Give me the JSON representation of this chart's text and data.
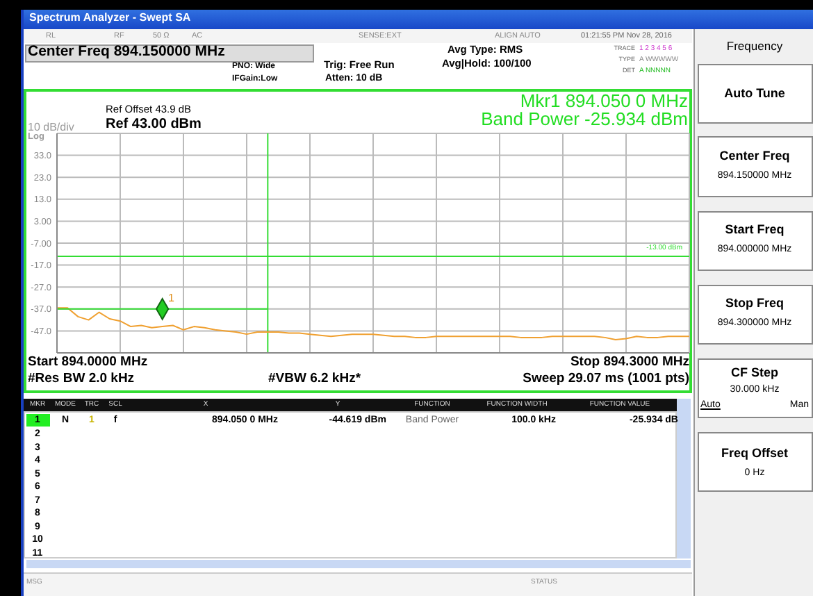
{
  "chart_data": {
    "type": "line",
    "categories": [
      null,
      null,
      null,
      null,
      null,
      null,
      null,
      null,
      null,
      null,
      null,
      null,
      null,
      null,
      null,
      null,
      null,
      null,
      null,
      null,
      null,
      null,
      null,
      null,
      null,
      null,
      null,
      null,
      null,
      null,
      null,
      null,
      null,
      null,
      null,
      null,
      null,
      null,
      null,
      null,
      null,
      null,
      null,
      null,
      null,
      null,
      null,
      null,
      null,
      null,
      null,
      null,
      null,
      null,
      null,
      null,
      null,
      null,
      null,
      null,
      null
    ],
    "series": [
      {
        "type": "line",
        "color": "#f0a030",
        "values": [
          -36.5,
          -36.5,
          -40.5,
          -42,
          -38.5,
          -41.5,
          -42.5,
          -45,
          -44.5,
          -45.5,
          -45,
          -44.5,
          -46.5,
          -45,
          -45.5,
          -46.5,
          -47,
          -47.5,
          -48.5,
          -47.5,
          -47.5,
          -47.5,
          -48,
          -48,
          -48.5,
          -49,
          -49.5,
          -49,
          -48.5,
          -48.5,
          -48.5,
          -49,
          -49.5,
          -49.5,
          -50,
          -50,
          -49.5,
          -49.5,
          -49.5,
          -49.5,
          -49.5,
          -49.5,
          -49.5,
          -49.5,
          -50,
          -50,
          -50,
          -49.5,
          -49.5,
          -49.5,
          -49.5,
          -49.5,
          -50,
          -51,
          -50.5,
          -49.5,
          -50,
          -50,
          -49.5,
          -49.5,
          -49.5
        ]
      },
      {
        "type": "line",
        "color": "#33dd33",
        "values": [
          -37,
          -37,
          -37,
          -37,
          -37,
          -37,
          -37,
          -37,
          -37,
          -37,
          -37,
          -37,
          -37,
          -37,
          -37,
          -37,
          -37,
          -37,
          -37,
          -37,
          -37,
          null,
          null,
          null,
          null,
          null,
          null,
          null,
          null,
          null,
          null,
          null,
          null,
          null,
          null,
          null,
          null,
          null,
          null,
          null,
          null,
          null,
          null,
          null,
          null,
          null,
          null,
          null,
          null,
          null,
          null,
          null,
          null,
          null,
          null,
          null,
          null,
          null,
          null,
          null,
          null
        ]
      },
      {
        "type": "scatter",
        "color": "#22cc22",
        "marker": "diamond",
        "values": [
          null,
          null,
          null,
          null,
          null,
          null,
          null,
          null,
          null,
          null,
          -37,
          null,
          null,
          null,
          null,
          null,
          null,
          null,
          null,
          null,
          null,
          null,
          null,
          null,
          null,
          null,
          null,
          null,
          null,
          null,
          null,
          null,
          null,
          null,
          null,
          null,
          null,
          null,
          null,
          null,
          null,
          null,
          null,
          null,
          null,
          null,
          null,
          null,
          null,
          null,
          null,
          null,
          null,
          null,
          null,
          null,
          null,
          null,
          null,
          null,
          null
        ]
      }
    ],
    "ylim": [
      -57,
      43
    ],
    "yticks": [
      {
        "value": 43,
        "label": null
      },
      {
        "value": 33,
        "label": "33.0"
      },
      {
        "value": 23,
        "label": "23.0"
      },
      {
        "value": 13,
        "label": "13.0"
      },
      {
        "value": 3,
        "label": "3.00"
      },
      {
        "value": -7,
        "label": "-7.00"
      },
      {
        "value": -17,
        "label": "-17.0"
      },
      {
        "value": -27,
        "label": "-27.0"
      },
      {
        "value": -37,
        "label": "-37.0"
      },
      {
        "value": -47,
        "label": "-47.0"
      },
      {
        "value": -57,
        "label": null
      }
    ],
    "tick_labels": "y",
    "grid": true,
    "marker": "none",
    "ref_lines": [
      {
        "axis": "y",
        "value": -13,
        "label": "-13.00 dBm",
        "color": "#33dd33"
      }
    ],
    "annotations": [
      "Spectrum Analyzer - Swept SA",
      "RL",
      "RF",
      "50 Ω",
      "AC",
      "SENSE:EXT",
      "ALIGN AUTO",
      "01:21:55 PM Nov 28, 2016",
      "Center Freq 894.150000 MHz",
      "PNO: Wide",
      "IFGain:Low",
      "Trig: Free Run",
      "Atten: 10 dB",
      "Avg Type: RMS",
      "Avg|Hold: 100/100",
      "TRACE",
      "1 2 3 4 5 6",
      "TYPE",
      "A WWWWW",
      "DET",
      "A NNNNN",
      "Ref Offset 43.9 dB",
      "10 dB/div",
      "Ref 43.00 dBm",
      "Log",
      "Mkr1 894.050 0 MHz",
      "Band Power -25.934 dBm",
      "Start 894.0000 MHz",
      "Stop 894.3000 MHz",
      "#Res BW 2.0 kHz",
      "#VBW 6.2 kHz*",
      "Sweep  29.07 ms (1001 pts)",
      "MKR",
      "MODE",
      "TRC",
      "SCL",
      "X",
      "Y",
      "FUNCTION",
      "FUNCTION WIDTH",
      "FUNCTION VALUE",
      "1",
      "N",
      "1",
      "f",
      "894.050 0 MHz",
      "-44.619 dBm",
      "Band Power",
      "100.0 kHz",
      "-25.934 dB",
      "2",
      "3",
      "4",
      "5",
      "6",
      "7",
      "8",
      "9",
      "10",
      "11",
      "MSG",
      "STATUS",
      "Frequency",
      "Auto Tune",
      "Center Freq",
      "894.150000 MHz",
      "Start Freq",
      "894.000000 MHz",
      "Stop Freq",
      "894.300000 MHz",
      "CF Step",
      "30.000 kHz",
      "Auto",
      "Man",
      "Freq Offset",
      "0 Hz",
      "1"
    ]
  }
}
